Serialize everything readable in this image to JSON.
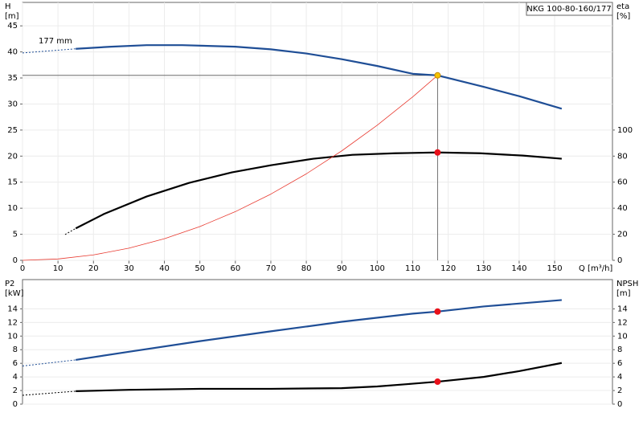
{
  "chart_data": [
    {
      "type": "line",
      "title": "NKG 100-80-160/177",
      "annotation": "177 mm",
      "x_label": "Q [m³/h]",
      "y_label": "H",
      "y_unit": "[m]",
      "y2_label": "eta",
      "y2_unit": "[%]",
      "xlim": [
        0,
        166.3
      ],
      "ylim": [
        0,
        49.5
      ],
      "y2lim": [
        0,
        198
      ],
      "xticks": [
        0,
        10,
        20,
        30,
        40,
        50,
        60,
        70,
        80,
        90,
        100,
        110,
        120,
        130,
        140,
        150
      ],
      "yticks": [
        0,
        5,
        10,
        15,
        20,
        25,
        30,
        35,
        40,
        45
      ],
      "y2ticks": [
        0,
        20,
        40,
        60,
        80,
        100
      ],
      "grid": true,
      "series": [
        {
          "axis": "y",
          "color": "#1f4e96",
          "style": "dashed",
          "x": [
            0,
            15
          ],
          "values": [
            39.8,
            40.6
          ]
        },
        {
          "axis": "y",
          "color": "#1f4e96",
          "style": "solid",
          "x": [
            15,
            25,
            35,
            45,
            60,
            70,
            80,
            90,
            100,
            110,
            117,
            130,
            140,
            152
          ],
          "values": [
            40.6,
            41,
            41.3,
            41.3,
            41,
            40.5,
            39.7,
            38.6,
            37.3,
            35.8,
            35.5,
            33.3,
            31.5,
            29.1
          ]
        },
        {
          "axis": "y2",
          "color": "#000000",
          "style": "dashed",
          "x": [
            12,
            15
          ],
          "values": [
            19.8,
            24.5
          ]
        },
        {
          "axis": "y2",
          "color": "#000000",
          "style": "solid",
          "x": [
            15,
            23,
            35,
            47,
            59,
            70,
            82,
            93,
            105,
            117,
            129,
            141,
            152
          ],
          "values": [
            24.5,
            35.6,
            49,
            59.5,
            67.5,
            73,
            78,
            81,
            82.2,
            82.8,
            82.2,
            80.4,
            78
          ]
        },
        {
          "axis": "y",
          "color": "#e8392f",
          "style": "thin",
          "x": [
            0,
            10,
            20,
            30,
            40,
            50,
            60,
            70,
            80,
            90,
            100,
            110,
            117
          ],
          "values": [
            0,
            0.26,
            1.04,
            2.33,
            4.15,
            6.48,
            9.34,
            12.71,
            16.6,
            21.01,
            25.93,
            31.38,
            35.5
          ]
        }
      ],
      "markers": [
        {
          "axis": "y",
          "x": 117,
          "value": 35.5,
          "color": "#f5c400",
          "crosshair": true
        },
        {
          "axis": "y2",
          "x": 117,
          "value": 82.8,
          "color": "#e8101a"
        }
      ]
    },
    {
      "type": "line",
      "y_label": "P2",
      "y_unit": "[kW]",
      "y2_label": "NPSH",
      "y2_unit": "[m]",
      "xlim": [
        0,
        166.3
      ],
      "ylim": [
        0,
        18.3
      ],
      "y2lim": [
        0,
        18.3
      ],
      "yticks": [
        0,
        2,
        4,
        6,
        8,
        10,
        12,
        14
      ],
      "y2ticks": [
        0,
        2,
        4,
        6,
        8,
        10,
        12,
        14
      ],
      "grid": true,
      "series": [
        {
          "axis": "y",
          "color": "#1f4e96",
          "style": "dashed",
          "x": [
            0,
            15
          ],
          "values": [
            5.6,
            6.5
          ]
        },
        {
          "axis": "y",
          "color": "#1f4e96",
          "style": "solid",
          "x": [
            15,
            30,
            50,
            70,
            90,
            110,
            117,
            130,
            152
          ],
          "values": [
            6.5,
            7.7,
            9.25,
            10.7,
            12.1,
            13.3,
            13.6,
            14.35,
            15.3
          ]
        },
        {
          "axis": "y2",
          "color": "#000000",
          "style": "dashed",
          "x": [
            0,
            15
          ],
          "values": [
            1.3,
            1.9
          ]
        },
        {
          "axis": "y2",
          "color": "#000000",
          "style": "solid",
          "x": [
            15,
            30,
            50,
            70,
            90,
            100,
            110,
            117,
            130,
            140,
            152
          ],
          "values": [
            1.9,
            2.1,
            2.25,
            2.25,
            2.35,
            2.6,
            3.0,
            3.3,
            4.0,
            4.85,
            6.05
          ]
        }
      ],
      "markers": [
        {
          "axis": "y",
          "x": 117,
          "value": 13.6,
          "color": "#e8101a"
        },
        {
          "axis": "y2",
          "x": 117,
          "value": 3.3,
          "color": "#e8101a"
        }
      ]
    }
  ]
}
